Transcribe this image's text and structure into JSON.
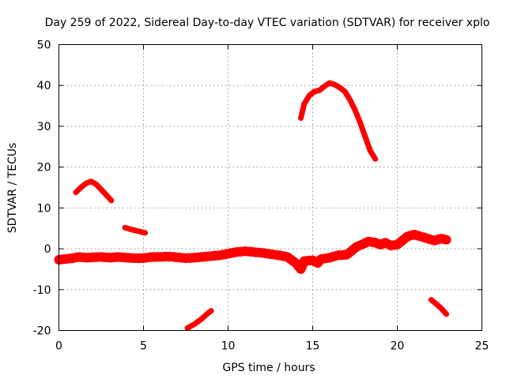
{
  "chart_data": {
    "type": "scatter",
    "title": "Day 259 of 2022, Sidereal Day-to-day VTEC variation (SDTVAR) for receiver xplo",
    "xlabel": "GPS time / hours",
    "ylabel": "SDTVAR / TECUs",
    "xlim": [
      0,
      25
    ],
    "ylim": [
      -20,
      50
    ],
    "xticks": [
      0,
      5,
      10,
      15,
      20,
      25
    ],
    "yticks": [
      -20,
      -10,
      0,
      10,
      20,
      30,
      40,
      50
    ],
    "grid": true,
    "marker": "+",
    "colors": {
      "series": "#ff0000",
      "axis": "#000000",
      "grid": "#a0a0a0",
      "background": "#ffffff"
    },
    "series": [
      {
        "name": "band",
        "points": [
          [
            0.0,
            -2.7
          ],
          [
            0.4,
            -2.5
          ],
          [
            0.8,
            -2.3
          ],
          [
            1.2,
            -2.0
          ],
          [
            1.6,
            -2.2
          ],
          [
            2.0,
            -2.1
          ],
          [
            2.5,
            -2.0
          ],
          [
            3.0,
            -2.2
          ],
          [
            3.5,
            -2.0
          ],
          [
            4.0,
            -2.2
          ],
          [
            4.5,
            -2.3
          ],
          [
            5.0,
            -2.3
          ],
          [
            5.5,
            -2.0
          ],
          [
            6.0,
            -2.0
          ],
          [
            6.5,
            -1.9
          ],
          [
            7.0,
            -2.1
          ],
          [
            7.5,
            -2.3
          ],
          [
            8.0,
            -2.2
          ],
          [
            8.5,
            -2.0
          ],
          [
            9.0,
            -1.8
          ],
          [
            9.5,
            -1.6
          ],
          [
            10.0,
            -1.2
          ],
          [
            10.5,
            -0.8
          ],
          [
            11.0,
            -0.6
          ],
          [
            11.5,
            -0.8
          ],
          [
            12.0,
            -1.0
          ],
          [
            12.5,
            -1.3
          ],
          [
            13.0,
            -1.6
          ],
          [
            13.5,
            -2.0
          ],
          [
            14.0,
            -3.5
          ],
          [
            14.3,
            -5.0
          ],
          [
            14.5,
            -3.0
          ],
          [
            15.0,
            -2.8
          ],
          [
            15.3,
            -3.5
          ],
          [
            15.5,
            -2.5
          ],
          [
            16.0,
            -2.2
          ],
          [
            16.5,
            -1.6
          ],
          [
            17.0,
            -1.5
          ],
          [
            17.3,
            -0.5
          ],
          [
            17.6,
            0.5
          ],
          [
            18.0,
            1.2
          ],
          [
            18.3,
            1.8
          ],
          [
            18.7,
            1.5
          ],
          [
            19.0,
            1.0
          ],
          [
            19.3,
            1.5
          ],
          [
            19.6,
            0.8
          ],
          [
            20.0,
            1.0
          ],
          [
            20.3,
            2.0
          ],
          [
            20.6,
            3.0
          ],
          [
            21.0,
            3.5
          ],
          [
            21.4,
            3.0
          ],
          [
            21.8,
            2.5
          ],
          [
            22.2,
            2.0
          ],
          [
            22.6,
            2.5
          ],
          [
            22.9,
            2.2
          ]
        ]
      },
      {
        "name": "arc-1",
        "points": [
          [
            1.0,
            13.8
          ],
          [
            1.3,
            15.0
          ],
          [
            1.6,
            16.0
          ],
          [
            1.9,
            16.5
          ],
          [
            2.2,
            15.8
          ],
          [
            2.5,
            14.5
          ],
          [
            2.8,
            13.2
          ],
          [
            3.1,
            11.8
          ]
        ]
      },
      {
        "name": "arc-2",
        "points": [
          [
            3.9,
            5.2
          ],
          [
            4.2,
            4.8
          ],
          [
            4.5,
            4.5
          ],
          [
            4.8,
            4.2
          ],
          [
            5.1,
            3.9
          ]
        ]
      },
      {
        "name": "arc-3",
        "points": [
          [
            7.6,
            -19.4
          ],
          [
            8.0,
            -18.5
          ],
          [
            8.4,
            -17.3
          ],
          [
            8.8,
            -15.8
          ],
          [
            9.0,
            -15.2
          ]
        ]
      },
      {
        "name": "arc-4",
        "points": [
          [
            14.3,
            32.0
          ],
          [
            14.5,
            35.5
          ],
          [
            14.8,
            37.5
          ],
          [
            15.1,
            38.5
          ],
          [
            15.4,
            38.8
          ],
          [
            15.7,
            39.8
          ],
          [
            16.0,
            40.6
          ],
          [
            16.3,
            40.2
          ],
          [
            16.6,
            39.5
          ],
          [
            16.9,
            38.5
          ],
          [
            17.2,
            36.5
          ],
          [
            17.5,
            34.0
          ],
          [
            17.8,
            31.0
          ],
          [
            18.1,
            27.5
          ],
          [
            18.4,
            24.0
          ],
          [
            18.7,
            22.0
          ]
        ]
      },
      {
        "name": "arc-5",
        "points": [
          [
            22.0,
            -12.5
          ],
          [
            22.3,
            -13.5
          ],
          [
            22.6,
            -14.6
          ],
          [
            22.9,
            -16.0
          ]
        ]
      }
    ]
  }
}
